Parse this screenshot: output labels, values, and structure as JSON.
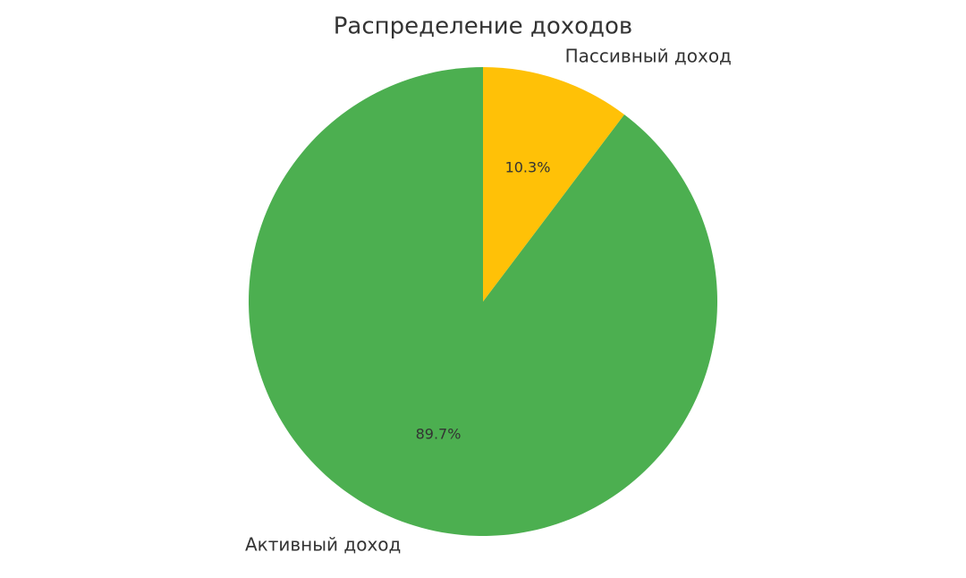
{
  "chart_data": {
    "type": "pie",
    "title": "Распределение доходов",
    "categories": [
      "Активный доход",
      "Пассивный доход"
    ],
    "values": [
      89.7,
      10.3
    ],
    "value_labels": [
      "89.7%",
      "10.3%"
    ],
    "colors": [
      "#4caf50",
      "#ffc107"
    ],
    "start_angle": 90,
    "direction": "counterclockwise"
  }
}
